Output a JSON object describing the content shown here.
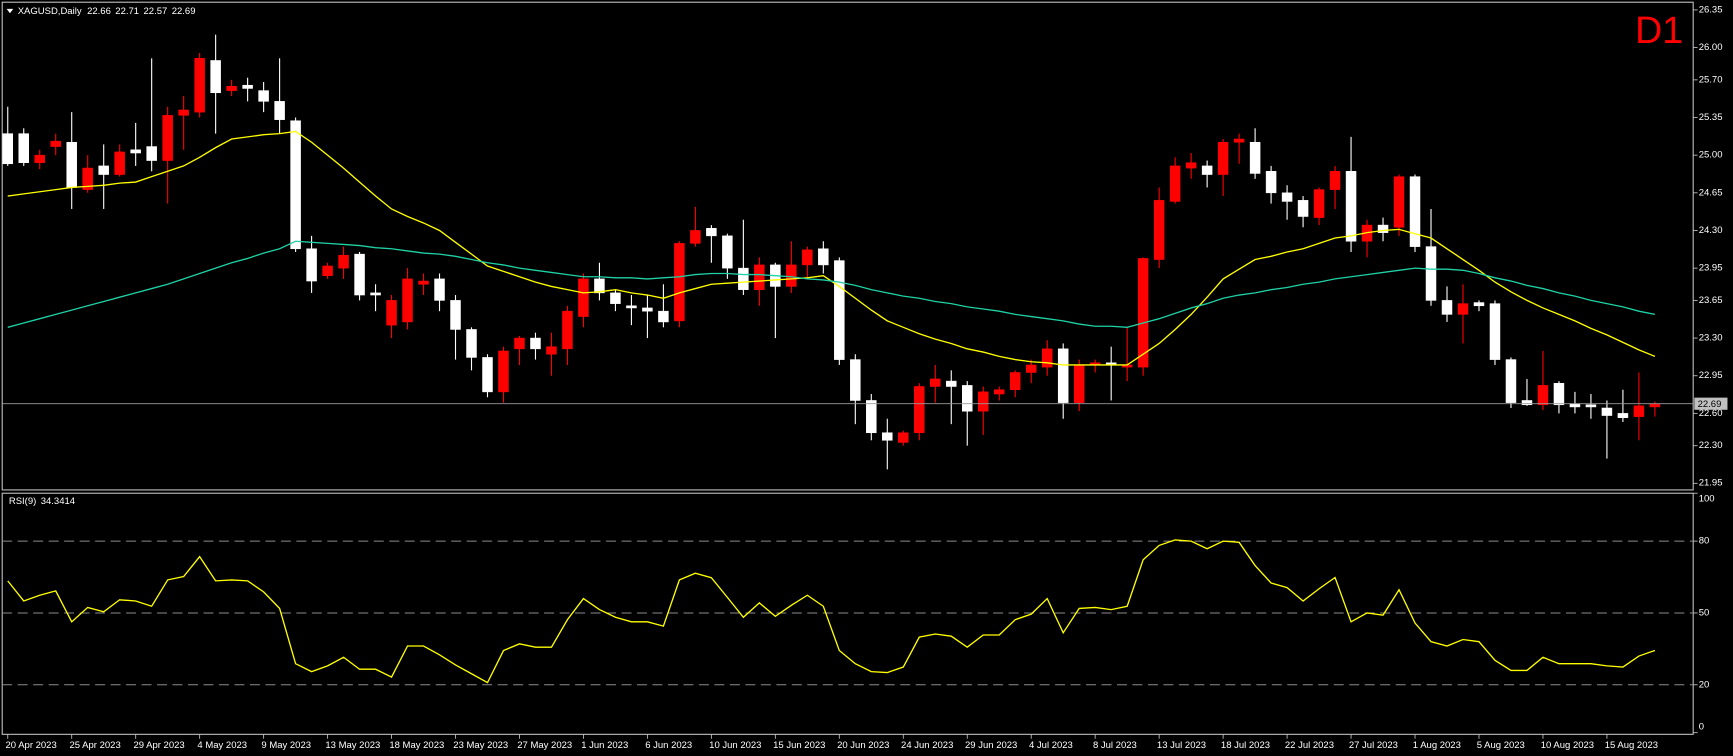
{
  "chart_data": [
    {
      "type": "candlestick",
      "title": "XAGUSD,Daily",
      "timeframe_label": "D1",
      "categories": [
        "20 Apr 2023",
        null,
        null,
        null,
        "25 Apr 2023",
        null,
        null,
        null,
        "29 Apr 2023",
        null,
        null,
        null,
        "4 May 2023",
        null,
        null,
        null,
        "9 May 2023",
        null,
        null,
        null,
        "13 May 2023",
        null,
        null,
        null,
        "18 May 2023",
        null,
        null,
        null,
        "23 May 2023",
        null,
        null,
        null,
        "27 May 2023",
        null,
        null,
        null,
        "1 Jun 2023",
        null,
        null,
        null,
        "6 Jun 2023",
        null,
        null,
        null,
        "10 Jun 2023",
        null,
        null,
        null,
        "15 Jun 2023",
        null,
        null,
        null,
        "20 Jun 2023",
        null,
        null,
        null,
        "24 Jun 2023",
        null,
        null,
        null,
        "29 Jun 2023",
        null,
        null,
        null,
        "4 Jul 2023",
        null,
        null,
        null,
        "8 Jul 2023",
        null,
        null,
        null,
        "13 Jul 2023",
        null,
        null,
        null,
        "18 Jul 2023",
        null,
        null,
        null,
        "22 Jul 2023",
        null,
        null,
        null,
        "27 Jul 2023",
        null,
        null,
        null,
        "1 Aug 2023",
        null,
        null,
        null,
        "5 Aug 2023",
        null,
        null,
        null,
        "10 Aug 2023",
        null,
        null,
        null,
        "15 Aug 2023",
        null,
        null,
        null
      ],
      "open": [
        25.2,
        25.2,
        24.93,
        25.08,
        25.12,
        24.68,
        24.9,
        24.82,
        25.05,
        25.08,
        24.95,
        25.37,
        25.4,
        25.88,
        25.6,
        25.65,
        25.6,
        25.5,
        25.32,
        24.13,
        23.88,
        23.95,
        24.08,
        23.72,
        23.42,
        23.45,
        23.8,
        23.85,
        23.65,
        23.38,
        23.12,
        22.8,
        23.2,
        23.3,
        23.15,
        23.2,
        23.5,
        23.85,
        23.72,
        23.6,
        23.58,
        23.55,
        23.46,
        24.18,
        24.32,
        24.25,
        23.95,
        23.75,
        23.98,
        23.78,
        23.98,
        24.13,
        24.02,
        23.1,
        22.72,
        22.42,
        22.33,
        22.42,
        22.85,
        22.9,
        22.86,
        22.62,
        22.78,
        22.82,
        22.98,
        23.03,
        23.2,
        22.7,
        23.05,
        23.07,
        23.03,
        23.03,
        24.03,
        24.57,
        24.88,
        24.9,
        24.82,
        25.12,
        25.12,
        24.85,
        24.65,
        24.58,
        24.42,
        24.68,
        24.85,
        24.2,
        24.35,
        24.33,
        24.8,
        24.15,
        23.65,
        23.52,
        23.63,
        23.62,
        23.1,
        22.72,
        22.68,
        22.88,
        22.69,
        22.68,
        22.65,
        22.6,
        22.57,
        22.66
      ],
      "high": [
        25.45,
        25.25,
        25.05,
        25.2,
        25.4,
        25.0,
        25.1,
        25.1,
        25.3,
        25.9,
        25.45,
        25.55,
        25.95,
        26.12,
        25.7,
        25.72,
        25.68,
        25.9,
        25.35,
        24.25,
        24.0,
        24.15,
        24.1,
        23.8,
        23.7,
        23.95,
        23.9,
        23.9,
        23.7,
        23.4,
        23.15,
        23.22,
        23.32,
        23.35,
        23.35,
        23.6,
        23.9,
        24.0,
        23.75,
        23.7,
        23.7,
        23.8,
        24.2,
        24.52,
        24.35,
        24.27,
        24.4,
        24.05,
        24.0,
        24.2,
        24.15,
        24.2,
        24.05,
        23.15,
        22.78,
        22.55,
        22.44,
        22.88,
        23.05,
        23.0,
        22.9,
        22.85,
        22.85,
        23.0,
        23.1,
        23.28,
        23.25,
        23.1,
        23.1,
        23.22,
        23.4,
        24.05,
        24.7,
        24.98,
        25.02,
        24.95,
        25.15,
        25.2,
        25.25,
        24.9,
        24.72,
        24.62,
        24.7,
        24.9,
        25.17,
        24.4,
        24.42,
        24.82,
        24.82,
        24.5,
        23.78,
        23.8,
        23.65,
        23.65,
        23.12,
        22.92,
        23.18,
        22.9,
        22.8,
        22.78,
        22.72,
        22.82,
        22.98,
        22.71
      ],
      "low": [
        24.9,
        24.9,
        24.87,
        25.0,
        24.5,
        24.65,
        24.5,
        24.8,
        24.9,
        24.85,
        24.55,
        25.05,
        25.35,
        25.2,
        25.55,
        25.5,
        25.4,
        25.2,
        24.1,
        23.72,
        23.85,
        23.85,
        23.65,
        23.55,
        23.3,
        23.38,
        23.7,
        23.55,
        23.1,
        23.0,
        22.75,
        22.7,
        23.05,
        23.1,
        22.95,
        23.05,
        23.4,
        23.65,
        23.55,
        23.42,
        23.3,
        23.4,
        23.4,
        24.15,
        24.0,
        23.85,
        23.7,
        23.6,
        23.3,
        23.72,
        23.85,
        23.9,
        23.05,
        22.5,
        22.35,
        22.08,
        22.3,
        22.35,
        22.7,
        22.5,
        22.3,
        22.4,
        22.72,
        22.75,
        22.88,
        22.95,
        22.55,
        22.62,
        22.98,
        22.72,
        22.9,
        22.95,
        23.95,
        24.55,
        24.78,
        24.7,
        24.62,
        24.92,
        24.78,
        24.55,
        24.4,
        24.33,
        24.35,
        24.5,
        24.1,
        24.05,
        24.2,
        24.25,
        24.1,
        23.6,
        23.45,
        23.25,
        23.55,
        23.05,
        22.65,
        22.67,
        22.63,
        22.6,
        22.6,
        22.55,
        22.18,
        22.52,
        22.35,
        22.57
      ],
      "close": [
        24.92,
        24.93,
        25.0,
        25.13,
        24.7,
        24.88,
        24.82,
        25.03,
        25.02,
        24.95,
        25.37,
        25.42,
        25.9,
        25.58,
        25.64,
        25.62,
        25.5,
        25.33,
        24.13,
        23.83,
        23.97,
        24.07,
        23.7,
        23.7,
        23.65,
        23.85,
        23.83,
        23.65,
        23.38,
        23.12,
        22.8,
        23.18,
        23.3,
        23.2,
        23.22,
        23.55,
        23.85,
        23.72,
        23.62,
        23.58,
        23.55,
        23.45,
        24.18,
        24.3,
        24.25,
        23.95,
        23.75,
        23.98,
        23.78,
        23.98,
        24.12,
        23.98,
        23.1,
        22.72,
        22.42,
        22.35,
        22.42,
        22.85,
        22.92,
        22.85,
        22.62,
        22.8,
        22.82,
        22.98,
        23.05,
        23.2,
        22.7,
        23.05,
        23.07,
        23.05,
        23.05,
        24.04,
        24.58,
        24.9,
        24.93,
        24.82,
        25.12,
        25.15,
        24.83,
        24.65,
        24.57,
        24.43,
        24.68,
        24.85,
        24.2,
        24.35,
        24.28,
        24.8,
        24.15,
        23.65,
        23.52,
        23.62,
        23.6,
        23.1,
        22.7,
        22.68,
        22.86,
        22.68,
        22.66,
        22.66,
        22.58,
        22.56,
        22.67,
        22.69
      ],
      "up_color": "#ff0000",
      "down_color": "#ffffff",
      "series": [
        {
          "color": "#ffff00",
          "values": [
            24.62,
            24.64,
            24.66,
            24.68,
            24.7,
            24.71,
            24.72,
            24.74,
            24.75,
            24.8,
            24.85,
            24.9,
            24.98,
            25.07,
            25.15,
            25.17,
            25.19,
            25.2,
            25.22,
            25.12,
            25.0,
            24.88,
            24.75,
            24.62,
            24.5,
            24.43,
            24.37,
            24.3,
            24.19,
            24.08,
            23.97,
            23.92,
            23.87,
            23.82,
            23.78,
            23.75,
            23.72,
            23.73,
            23.75,
            23.72,
            23.7,
            23.67,
            23.72,
            23.76,
            23.8,
            23.81,
            23.82,
            23.83,
            23.84,
            23.85,
            23.86,
            23.88,
            23.78,
            23.67,
            23.56,
            23.46,
            23.4,
            23.34,
            23.29,
            23.25,
            23.2,
            23.17,
            23.13,
            23.1,
            23.08,
            23.07,
            23.05,
            23.05,
            23.05,
            23.05,
            23.05,
            23.15,
            23.25,
            23.38,
            23.52,
            23.68,
            23.85,
            23.94,
            24.03,
            24.06,
            24.1,
            24.13,
            24.18,
            24.23,
            24.25,
            24.28,
            24.3,
            24.31,
            24.27,
            24.23,
            24.13,
            24.03,
            23.93,
            23.82,
            23.73,
            23.65,
            23.58,
            23.52,
            23.46,
            23.39,
            23.33,
            23.26,
            23.19,
            23.13
          ]
        },
        {
          "color": "#1fd1a5",
          "values": [
            23.4,
            23.44,
            23.48,
            23.52,
            23.56,
            23.6,
            23.64,
            23.68,
            23.72,
            23.76,
            23.8,
            23.85,
            23.9,
            23.95,
            24.0,
            24.04,
            24.09,
            24.13,
            24.2,
            24.19,
            24.18,
            24.17,
            24.16,
            24.14,
            24.13,
            24.11,
            24.09,
            24.08,
            24.06,
            24.03,
            24.0,
            23.98,
            23.95,
            23.93,
            23.91,
            23.89,
            23.87,
            23.87,
            23.86,
            23.86,
            23.85,
            23.86,
            23.87,
            23.89,
            23.9,
            23.9,
            23.89,
            23.89,
            23.88,
            23.87,
            23.85,
            23.84,
            23.82,
            23.79,
            23.75,
            23.72,
            23.69,
            23.67,
            23.64,
            23.62,
            23.59,
            23.57,
            23.55,
            23.52,
            23.5,
            23.48,
            23.46,
            23.43,
            23.41,
            23.41,
            23.4,
            23.44,
            23.48,
            23.53,
            23.58,
            23.62,
            23.67,
            23.7,
            23.72,
            23.75,
            23.77,
            23.8,
            23.82,
            23.85,
            23.87,
            23.89,
            23.91,
            23.93,
            23.95,
            23.94,
            23.94,
            23.93,
            23.9,
            23.86,
            23.83,
            23.79,
            23.76,
            23.72,
            23.69,
            23.65,
            23.62,
            23.59,
            23.55,
            23.52
          ]
        }
      ],
      "ylim": [
        21.9,
        26.4
      ],
      "yticks": [
        26.35,
        {
          "value": 26,
          "label": "26.00"
        },
        {
          "value": 25.7,
          "label": "25.70"
        },
        25.35,
        {
          "value": 25,
          "label": "25.00"
        },
        24.65,
        {
          "value": 24.3,
          "label": "24.30"
        },
        23.95,
        23.65,
        {
          "value": 23.3,
          "label": "23.30"
        },
        22.95,
        {
          "value": 22.6,
          "label": "22.60"
        },
        {
          "value": 22.3,
          "label": "22.30"
        },
        21.95
      ],
      "last_price_line": true,
      "grid": false
    },
    {
      "type": "line",
      "title": "RSI(9)",
      "series": [
        {
          "color": "#ffff00",
          "values": [
            63.4,
            55,
            57.4,
            59.2,
            46.3,
            52.3,
            50.5,
            55.5,
            55,
            52.8,
            63.8,
            65.2,
            73.5,
            63.4,
            63.8,
            63.4,
            58.8,
            51.9,
            28.8,
            25.5,
            27.9,
            31.5,
            26.5,
            26.5,
            23.2,
            36.2,
            36.2,
            32.5,
            28.3,
            24.6,
            20.9,
            34.3,
            37.1,
            35.7,
            35.7,
            47.2,
            56,
            51.4,
            48.2,
            46.3,
            46.3,
            44.5,
            63.8,
            66.6,
            64.7,
            56.5,
            48.2,
            54.2,
            48.6,
            53.2,
            57.4,
            52.8,
            34.3,
            28.8,
            25.5,
            25.1,
            27.4,
            39.9,
            41.2,
            40.3,
            35.7,
            40.8,
            40.8,
            47.2,
            49.5,
            56,
            41.7,
            51.9,
            52.3,
            51.4,
            52.8,
            72.2,
            78.2,
            80.5,
            80,
            76.8,
            80,
            79.5,
            69.8,
            62.5,
            60.6,
            55,
            60.1,
            64.8,
            46.3,
            50,
            49.1,
            59.7,
            45.8,
            38,
            36.2,
            38.9,
            38,
            30.2,
            26,
            26,
            31.5,
            28.8,
            28.8,
            28.8,
            27.9,
            27.4,
            32,
            34.3414
          ]
        }
      ],
      "ylim": [
        0,
        100
      ],
      "yticks": [
        100,
        80,
        50,
        20,
        0
      ],
      "levels": [
        80,
        50,
        20
      ],
      "grid": false
    }
  ]
}
